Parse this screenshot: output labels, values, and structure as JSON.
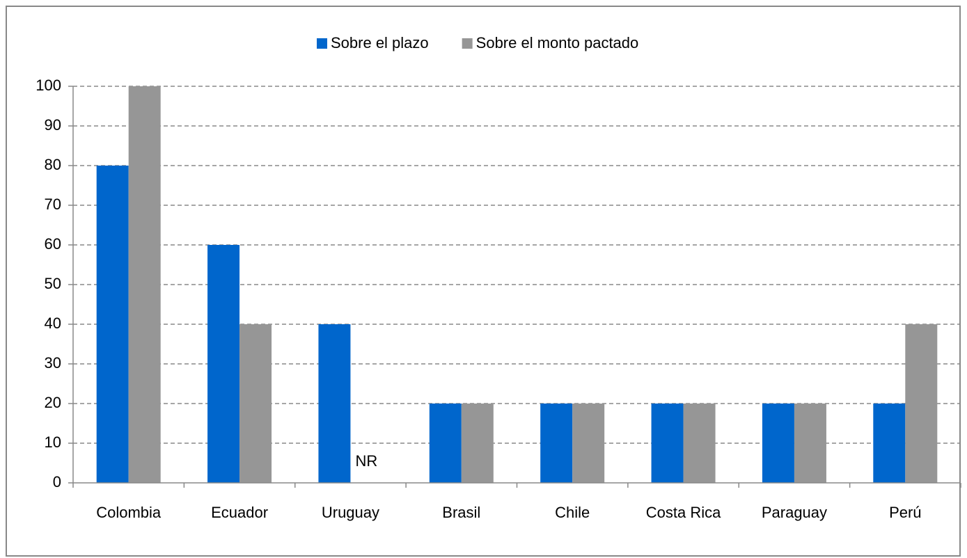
{
  "chart_data": {
    "type": "bar",
    "categories": [
      "Colombia",
      "Ecuador",
      "Uruguay",
      "Brasil",
      "Chile",
      "Costa Rica",
      "Paraguay",
      "Perú"
    ],
    "series": [
      {
        "name": "Sobre el plazo",
        "color": "#0066cc",
        "values": [
          80,
          60,
          40,
          20,
          20,
          20,
          20,
          20
        ]
      },
      {
        "name": "Sobre el monto pactado",
        "color": "#969696",
        "values": [
          100,
          40,
          null,
          20,
          20,
          20,
          20,
          40
        ],
        "value_labels": [
          null,
          null,
          "NR",
          null,
          null,
          null,
          null,
          null
        ]
      }
    ],
    "ylim": [
      0,
      100
    ],
    "yticks": [
      0,
      10,
      20,
      30,
      40,
      50,
      60,
      70,
      80,
      90,
      100
    ],
    "grid": true,
    "legend": "top"
  }
}
